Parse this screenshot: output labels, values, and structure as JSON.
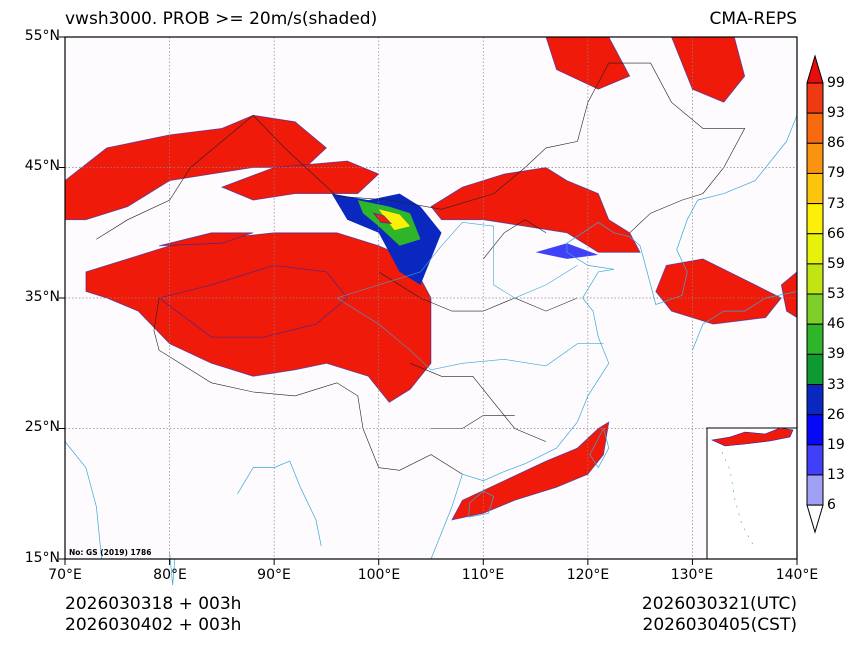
{
  "title_left": "vwsh3000. PROB >= 20m/s(shaded)",
  "title_right": "CMA-REPS",
  "lat_labels": [
    "55°N",
    "45°N",
    "35°N",
    "25°N",
    "15°N"
  ],
  "lon_labels": [
    "70°E",
    "80°E",
    "90°E",
    "100°E",
    "110°E",
    "120°E",
    "130°E",
    "140°E"
  ],
  "map_note": "No: GS (2019) 1786",
  "footer": {
    "init_utc": "2026030318  +  003h",
    "init_cst": "2026030402  +  003h",
    "valid_utc": "2026030321(UTC)",
    "valid_cst": "2026030405(CST)"
  },
  "colorbar": {
    "labels": [
      "99",
      "93",
      "86",
      "79",
      "73",
      "66",
      "59",
      "53",
      "46",
      "39",
      "33",
      "26",
      "19",
      "13",
      "6"
    ],
    "colors": [
      "#ee3a12",
      "#f76a10",
      "#fa9410",
      "#fcc40c",
      "#fcf00a",
      "#e6f20c",
      "#c0e414",
      "#7fcf2a",
      "#2fb52a",
      "#0e9a32",
      "#0a28c0",
      "#0808f8",
      "#4040f8",
      "#a0a0f4"
    ],
    "over_color": "#e80c0c",
    "under_color": "#ffffff"
  }
}
